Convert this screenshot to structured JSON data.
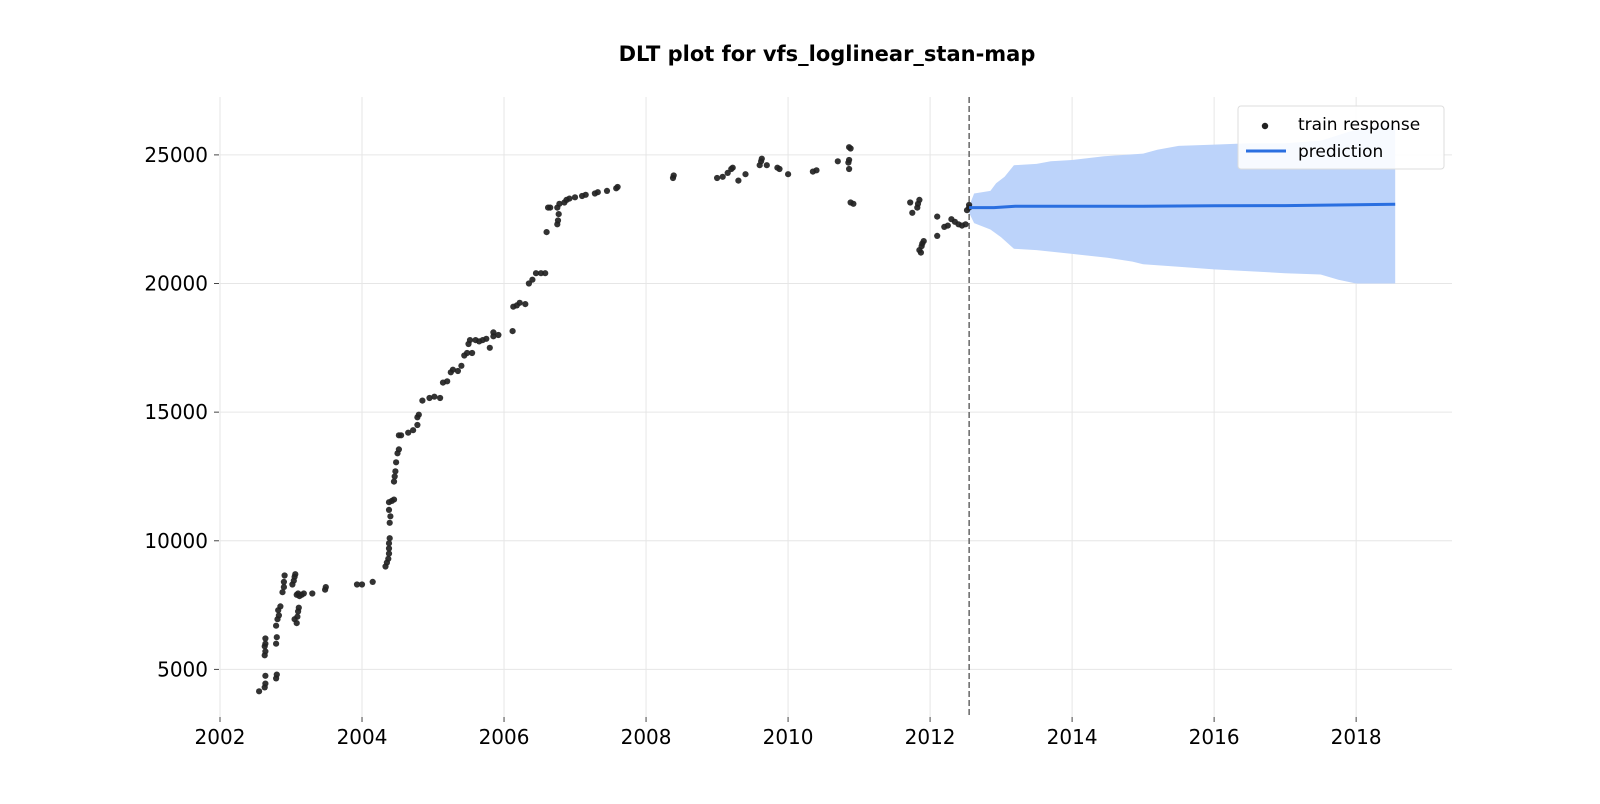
{
  "chart_data": {
    "type": "scatter",
    "title": "DLT plot for vfs_loglinear_stan-map",
    "xlabel": "",
    "ylabel": "",
    "xlim": [
      2002.0,
      2019.35
    ],
    "ylim": [
      3150,
      27250
    ],
    "x_ticks": [
      2002,
      2004,
      2006,
      2008,
      2010,
      2012,
      2014,
      2016,
      2018
    ],
    "x_tick_labels": [
      "2002",
      "2004",
      "2006",
      "2008",
      "2010",
      "2012",
      "2014",
      "2016",
      "2018"
    ],
    "y_ticks": [
      5000,
      10000,
      15000,
      20000,
      25000
    ],
    "y_tick_labels": [
      "5000",
      "10000",
      "15000",
      "20000",
      "25000"
    ],
    "grid": true,
    "legend_position": "top-right",
    "legend": [
      {
        "label": "train response",
        "marker": "dot",
        "color": "#222222"
      },
      {
        "label": "prediction",
        "marker": "line",
        "color": "#2a6fe0"
      }
    ],
    "split_line_x": 2012.55,
    "series": [
      {
        "name": "train response",
        "kind": "scatter",
        "color": "#222222",
        "points": [
          [
            2002.55,
            4150
          ],
          [
            2002.63,
            4300
          ],
          [
            2002.64,
            4450
          ],
          [
            2002.64,
            4750
          ],
          [
            2002.63,
            5550
          ],
          [
            2002.64,
            5700
          ],
          [
            2002.63,
            5900
          ],
          [
            2002.64,
            6000
          ],
          [
            2002.64,
            6200
          ],
          [
            2002.79,
            4650
          ],
          [
            2002.8,
            4800
          ],
          [
            2002.79,
            6000
          ],
          [
            2002.8,
            6250
          ],
          [
            2002.79,
            6700
          ],
          [
            2002.81,
            6950
          ],
          [
            2002.83,
            7100
          ],
          [
            2002.82,
            7300
          ],
          [
            2002.85,
            7450
          ],
          [
            2002.88,
            8000
          ],
          [
            2002.9,
            8200
          ],
          [
            2002.9,
            8400
          ],
          [
            2002.91,
            8650
          ],
          [
            2003.02,
            8300
          ],
          [
            2003.04,
            8450
          ],
          [
            2003.05,
            8600
          ],
          [
            2003.06,
            8700
          ],
          [
            2003.08,
            7900
          ],
          [
            2003.1,
            7950
          ],
          [
            2003.12,
            7850
          ],
          [
            2003.15,
            7900
          ],
          [
            2003.18,
            7950
          ],
          [
            2003.05,
            6950
          ],
          [
            2003.08,
            6800
          ],
          [
            2003.09,
            7050
          ],
          [
            2003.1,
            7250
          ],
          [
            2003.11,
            7400
          ],
          [
            2003.3,
            7950
          ],
          [
            2003.48,
            8100
          ],
          [
            2003.49,
            8200
          ],
          [
            2003.93,
            8300
          ],
          [
            2004.0,
            8300
          ],
          [
            2004.15,
            8400
          ],
          [
            2004.33,
            9000
          ],
          [
            2004.35,
            9150
          ],
          [
            2004.37,
            9300
          ],
          [
            2004.38,
            9500
          ],
          [
            2004.38,
            9700
          ],
          [
            2004.38,
            9900
          ],
          [
            2004.39,
            10100
          ],
          [
            2004.39,
            10700
          ],
          [
            2004.4,
            10950
          ],
          [
            2004.38,
            11200
          ],
          [
            2004.38,
            11500
          ],
          [
            2004.42,
            11550
          ],
          [
            2004.45,
            11600
          ],
          [
            2004.45,
            12300
          ],
          [
            2004.46,
            12500
          ],
          [
            2004.47,
            12700
          ],
          [
            2004.48,
            13050
          ],
          [
            2004.5,
            13400
          ],
          [
            2004.52,
            13550
          ],
          [
            2004.52,
            14100
          ],
          [
            2004.55,
            14100
          ],
          [
            2004.65,
            14200
          ],
          [
            2004.72,
            14300
          ],
          [
            2004.78,
            14500
          ],
          [
            2004.78,
            14800
          ],
          [
            2004.8,
            14900
          ],
          [
            2004.85,
            15450
          ],
          [
            2004.95,
            15550
          ],
          [
            2005.02,
            15600
          ],
          [
            2005.1,
            15550
          ],
          [
            2005.14,
            16150
          ],
          [
            2005.2,
            16200
          ],
          [
            2005.25,
            16550
          ],
          [
            2005.28,
            16650
          ],
          [
            2005.35,
            16600
          ],
          [
            2005.4,
            16800
          ],
          [
            2005.44,
            17200
          ],
          [
            2005.48,
            17300
          ],
          [
            2005.5,
            17650
          ],
          [
            2005.52,
            17800
          ],
          [
            2005.55,
            17300
          ],
          [
            2005.6,
            17800
          ],
          [
            2005.65,
            17750
          ],
          [
            2005.7,
            17800
          ],
          [
            2005.75,
            17850
          ],
          [
            2005.8,
            17500
          ],
          [
            2005.85,
            17950
          ],
          [
            2005.92,
            18000
          ],
          [
            2005.85,
            18100
          ],
          [
            2006.12,
            18150
          ],
          [
            2006.13,
            19100
          ],
          [
            2006.18,
            19150
          ],
          [
            2006.22,
            19250
          ],
          [
            2006.3,
            19200
          ],
          [
            2006.35,
            20000
          ],
          [
            2006.4,
            20150
          ],
          [
            2006.45,
            20400
          ],
          [
            2006.52,
            20400
          ],
          [
            2006.58,
            20400
          ],
          [
            2006.6,
            22000
          ],
          [
            2006.62,
            22950
          ],
          [
            2006.65,
            22950
          ],
          [
            2006.75,
            22300
          ],
          [
            2006.76,
            22450
          ],
          [
            2006.77,
            22700
          ],
          [
            2006.75,
            22950
          ],
          [
            2006.78,
            23100
          ],
          [
            2006.85,
            23150
          ],
          [
            2006.88,
            23250
          ],
          [
            2006.92,
            23300
          ],
          [
            2007.0,
            23350
          ],
          [
            2007.1,
            23400
          ],
          [
            2007.15,
            23450
          ],
          [
            2007.28,
            23500
          ],
          [
            2007.32,
            23550
          ],
          [
            2007.45,
            23600
          ],
          [
            2007.58,
            23700
          ],
          [
            2007.6,
            23750
          ],
          [
            2008.38,
            24100
          ],
          [
            2008.39,
            24200
          ],
          [
            2009.0,
            24100
          ],
          [
            2009.08,
            24150
          ],
          [
            2009.15,
            24300
          ],
          [
            2009.2,
            24450
          ],
          [
            2009.22,
            24500
          ],
          [
            2009.3,
            24000
          ],
          [
            2009.4,
            24250
          ],
          [
            2009.6,
            24600
          ],
          [
            2009.62,
            24750
          ],
          [
            2009.63,
            24850
          ],
          [
            2009.7,
            24600
          ],
          [
            2009.85,
            24500
          ],
          [
            2009.88,
            24450
          ],
          [
            2010.0,
            24250
          ],
          [
            2010.35,
            24350
          ],
          [
            2010.4,
            24400
          ],
          [
            2010.7,
            24750
          ],
          [
            2010.85,
            24700
          ],
          [
            2010.86,
            24800
          ],
          [
            2010.86,
            25300
          ],
          [
            2010.88,
            25250
          ],
          [
            2010.86,
            24450
          ],
          [
            2010.88,
            23150
          ],
          [
            2010.92,
            23100
          ],
          [
            2011.72,
            23150
          ],
          [
            2011.75,
            22750
          ],
          [
            2011.82,
            22950
          ],
          [
            2011.83,
            23100
          ],
          [
            2011.85,
            23250
          ],
          [
            2011.85,
            21300
          ],
          [
            2011.87,
            21200
          ],
          [
            2011.88,
            21450
          ],
          [
            2011.89,
            21550
          ],
          [
            2011.91,
            21650
          ],
          [
            2012.1,
            21850
          ],
          [
            2012.1,
            22600
          ],
          [
            2012.2,
            22200
          ],
          [
            2012.25,
            22250
          ],
          [
            2012.3,
            22500
          ],
          [
            2012.35,
            22400
          ],
          [
            2012.4,
            22300
          ],
          [
            2012.45,
            22250
          ],
          [
            2012.5,
            22300
          ],
          [
            2012.52,
            22850
          ],
          [
            2012.55,
            22950
          ],
          [
            2012.55,
            23050
          ]
        ]
      },
      {
        "name": "prediction",
        "kind": "line",
        "color": "#2a6fe0",
        "points": [
          [
            2012.55,
            22950
          ],
          [
            2012.9,
            22950
          ],
          [
            2013.2,
            23000
          ],
          [
            2014.0,
            23000
          ],
          [
            2015.0,
            23000
          ],
          [
            2016.0,
            23020
          ],
          [
            2017.0,
            23030
          ],
          [
            2018.0,
            23060
          ],
          [
            2018.55,
            23080
          ]
        ]
      }
    ],
    "band": {
      "color": "#bcd3fa",
      "upper": [
        [
          2012.55,
          23000
        ],
        [
          2012.62,
          23500
        ],
        [
          2012.85,
          23600
        ],
        [
          2012.93,
          23900
        ],
        [
          2013.05,
          24150
        ],
        [
          2013.18,
          24600
        ],
        [
          2013.5,
          24650
        ],
        [
          2013.7,
          24750
        ],
        [
          2014.0,
          24800
        ],
        [
          2014.45,
          24950
        ],
        [
          2015.0,
          25050
        ],
        [
          2015.2,
          25200
        ],
        [
          2015.5,
          25350
        ],
        [
          2016.0,
          25400
        ],
        [
          2016.5,
          25450
        ],
        [
          2017.0,
          25450
        ],
        [
          2017.5,
          25550
        ],
        [
          2017.9,
          25900
        ],
        [
          2018.2,
          26100
        ],
        [
          2018.55,
          26150
        ]
      ],
      "lower": [
        [
          2012.55,
          22750
        ],
        [
          2012.62,
          22350
        ],
        [
          2012.85,
          22100
        ],
        [
          2013.0,
          21800
        ],
        [
          2013.18,
          21350
        ],
        [
          2013.5,
          21300
        ],
        [
          2014.0,
          21150
        ],
        [
          2014.5,
          21000
        ],
        [
          2014.85,
          20850
        ],
        [
          2015.0,
          20750
        ],
        [
          2015.5,
          20650
        ],
        [
          2016.0,
          20550
        ],
        [
          2016.5,
          20480
        ],
        [
          2017.0,
          20400
        ],
        [
          2017.5,
          20350
        ],
        [
          2017.75,
          20150
        ],
        [
          2018.0,
          20000
        ],
        [
          2018.55,
          20000
        ]
      ]
    }
  }
}
